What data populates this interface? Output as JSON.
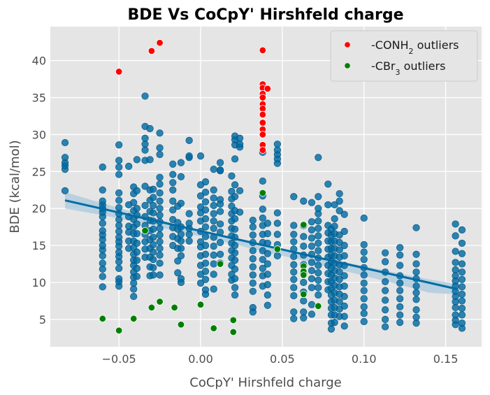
{
  "chart_data": {
    "type": "scatter",
    "title": "BDE Vs CoCpY' Hirshfeld charge",
    "xlabel": "CoCpY' Hirshfeld charge",
    "ylabel": "BDE (kcal/mol)",
    "xlim": [
      -0.092,
      0.172
    ],
    "ylim": [
      1.3,
      44.6
    ],
    "x_ticks": [
      -0.05,
      0.0,
      0.05,
      0.1,
      0.15
    ],
    "x_tick_labels": [
      "−0.05",
      "0.00",
      "0.05",
      "0.10",
      "0.15"
    ],
    "y_ticks": [
      5,
      10,
      15,
      20,
      25,
      30,
      35,
      40
    ],
    "y_tick_labels": [
      "5",
      "10",
      "15",
      "20",
      "25",
      "30",
      "35",
      "40"
    ],
    "grid": true,
    "legend_position": "top-right",
    "colors": {
      "main": "#006ba4",
      "conh2": "#ff0000",
      "cbr3": "#008000",
      "plot_bg": "#e5e5e5",
      "grid": "#ffffff",
      "fit_line": "#006ba4",
      "band": "#a8c8dc"
    },
    "regression": {
      "x": [
        -0.083,
        0.157
      ],
      "y": [
        21.1,
        9.1
      ]
    },
    "band": {
      "x": [
        -0.083,
        -0.06,
        -0.04,
        -0.02,
        0.0,
        0.02,
        0.04,
        0.06,
        0.08,
        0.1,
        0.12,
        0.14,
        0.157
      ],
      "upper": [
        22.2,
        20.7,
        19.4,
        18.2,
        17.1,
        16.1,
        15.1,
        14.1,
        13.1,
        12.2,
        11.3,
        10.4,
        9.8
      ],
      "lower": [
        20.0,
        19.1,
        18.2,
        17.2,
        16.2,
        15.2,
        14.1,
        13.1,
        12.0,
        10.9,
        9.8,
        8.6,
        8.4
      ]
    },
    "series": [
      {
        "name": "",
        "columns": [
          {
            "x": -0.083,
            "y": [
              22.4,
              25.3,
              25.8,
              26.2,
              26.9,
              28.9
            ]
          },
          {
            "x": -0.06,
            "y": [
              9.4,
              10.8,
              11.8,
              12.6,
              13.6,
              14.4,
              15.0,
              15.8,
              16.4,
              17.0,
              18.0,
              18.9,
              19.5,
              20.0,
              20.5,
              21.0,
              22.5,
              25.6
            ]
          },
          {
            "x": -0.05,
            "y": [
              9.5,
              10.1,
              10.5,
              11.9,
              12.8,
              13.5,
              14.1,
              14.9,
              15.5,
              16.1,
              16.9,
              17.7,
              18.5,
              19.3,
              20.1,
              21.1,
              22.1,
              24.6,
              25.6,
              26.5,
              28.6
            ]
          },
          {
            "x": -0.044,
            "y": [
              14.6,
              15.6,
              16.8,
              17.6,
              18.9,
              20.5,
              25.7
            ]
          },
          {
            "x": -0.041,
            "y": [
              8.1,
              9.1,
              9.9,
              10.7,
              11.4,
              12.3,
              13.0,
              13.8,
              14.7,
              15.6,
              16.6,
              17.5,
              18.5,
              19.7,
              20.8,
              22.0,
              22.9
            ]
          },
          {
            "x": -0.039,
            "y": [
              10.8,
              11.9,
              13.0,
              14.1,
              15.3,
              16.6,
              17.9,
              19.1,
              20.0,
              22.4,
              26.6
            ]
          },
          {
            "x": -0.034,
            "y": [
              13.4,
              14.5,
              15.5,
              16.5,
              17.7,
              18.9,
              20.4,
              23.0,
              26.5,
              27.9,
              28.7,
              29.5,
              31.1,
              35.2
            ]
          },
          {
            "x": -0.031,
            "y": [
              10.9,
              12.1,
              13.4,
              14.6,
              15.8,
              17.0,
              18.4,
              19.6,
              21.1,
              22.5,
              26.6,
              30.8
            ]
          },
          {
            "x": -0.029,
            "y": [
              11.0,
              12.0,
              13.1,
              14.1,
              15.1,
              16.1,
              17.2,
              18.3,
              19.4,
              20.4,
              21.5,
              22.6
            ]
          },
          {
            "x": -0.025,
            "y": [
              11.0,
              12.6,
              13.7,
              14.6,
              15.5,
              16.4,
              17.3,
              18.2,
              19.1,
              20.0,
              21.0,
              22.1,
              23.3,
              24.2,
              27.3,
              28.2,
              30.2
            ]
          },
          {
            "x": -0.017,
            "y": [
              15.0,
              16.2,
              17.4,
              18.5,
              19.8,
              21.0,
              22.5,
              23.5,
              24.6,
              26.0
            ]
          },
          {
            "x": -0.014,
            "y": [
              11.3,
              12.9,
              14.6,
              15.9,
              17.2,
              18.1,
              20.3
            ]
          },
          {
            "x": -0.012,
            "y": [
              10.0,
              10.5,
              13.6,
              14.6,
              15.6,
              16.5,
              17.5,
              20.7,
              24.3,
              26.2
            ]
          },
          {
            "x": -0.007,
            "y": [
              15.6,
              16.5,
              17.3,
              18.0,
              19.3,
              26.9,
              27.1,
              29.2
            ]
          },
          {
            "x": 0.0,
            "y": [
              9.9,
              11.1,
              12.3,
              13.6,
              14.8,
              15.5,
              16.9,
              18.3,
              19.4,
              20.2,
              21.7,
              23.2,
              27.1
            ]
          },
          {
            "x": 0.003,
            "y": [
              8.4,
              9.0,
              10.4,
              11.5,
              12.6,
              13.8,
              15.0,
              16.2,
              17.5,
              18.6,
              19.8,
              20.9,
              22.2,
              23.6
            ]
          },
          {
            "x": 0.008,
            "y": [
              9.1,
              11.1,
              12.5,
              13.7,
              14.9,
              16.1,
              17.3,
              18.3,
              19.3,
              20.4,
              21.4,
              22.5,
              25.3
            ]
          },
          {
            "x": 0.012,
            "y": [
              12.6,
              13.8,
              15.4,
              16.8,
              17.9,
              19.6,
              20.6,
              21.2,
              25.1,
              25.2,
              26.2
            ]
          },
          {
            "x": 0.019,
            "y": [
              10.3,
              11.1,
              12.3,
              13.3,
              14.3,
              15.3,
              16.3,
              17.3,
              18.3,
              19.3,
              20.3,
              21.3,
              22.3,
              24.4
            ]
          },
          {
            "x": 0.021,
            "y": [
              8.3,
              9.3,
              10.5,
              11.8,
              13.0,
              14.0,
              15.0,
              16.1,
              17.2,
              18.6,
              19.7,
              21.6,
              23.2,
              26.7,
              28.6,
              29.3,
              29.8
            ]
          },
          {
            "x": 0.024,
            "y": [
              19.5,
              22.4,
              28.3,
              28.7,
              29.5
            ]
          },
          {
            "x": 0.032,
            "y": [
              6.0,
              6.6,
              8.8,
              9.9,
              11.0,
              12.1,
              13.2,
              14.3,
              15.4,
              16.4,
              17.5,
              18.4
            ]
          },
          {
            "x": 0.038,
            "y": [
              9.5,
              10.9,
              11.9,
              13.1,
              14.3,
              15.4,
              16.5,
              17.7,
              18.7,
              19.9,
              21.7,
              22.1,
              23.7,
              27.6
            ]
          },
          {
            "x": 0.041,
            "y": [
              6.9,
              8.3,
              9.7,
              11.1,
              12.5,
              13.9,
              15.3,
              16.6,
              18.0
            ]
          },
          {
            "x": 0.047,
            "y": [
              13.6,
              15.1,
              16.5,
              18.0,
              19.4,
              26.1,
              26.7,
              27.3,
              27.9,
              28.7
            ]
          },
          {
            "x": 0.057,
            "y": [
              5.1,
              6.0,
              8.2,
              9.3,
              10.4,
              11.4,
              12.4,
              13.5,
              14.5,
              15.5,
              16.5,
              17.7,
              21.6
            ]
          },
          {
            "x": 0.063,
            "y": [
              5.2,
              6.0,
              7.5,
              8.7,
              10.0,
              11.2,
              12.4,
              13.7,
              14.9,
              16.2,
              17.7,
              21.0
            ]
          },
          {
            "x": 0.068,
            "y": [
              5.7,
              7.0,
              9.3,
              10.5,
              11.6,
              12.7,
              13.8,
              14.9,
              16.0,
              17.1,
              18.2,
              20.8
            ]
          },
          {
            "x": 0.072,
            "y": [
              8.3,
              9.3,
              10.3,
              11.3,
              12.3,
              13.3,
              14.3,
              15.3,
              16.3,
              17.3,
              18.3,
              19.3,
              20.0,
              21.6,
              26.9
            ]
          },
          {
            "x": 0.078,
            "y": [
              9.0,
              10.1,
              11.2,
              12.3,
              13.4,
              14.5,
              15.6,
              16.7,
              17.7,
              20.5,
              23.3
            ]
          },
          {
            "x": 0.08,
            "y": [
              3.7,
              4.5,
              5.6,
              6.5,
              7.4,
              8.3,
              9.2,
              10.1,
              11.0,
              11.9,
              12.8,
              13.7,
              14.6,
              15.5,
              16.4,
              17.2
            ]
          },
          {
            "x": 0.082,
            "y": [
              4.6,
              5.6,
              6.6,
              7.6,
              8.6,
              9.6,
              10.6,
              11.6,
              12.6,
              13.6,
              14.6,
              15.6,
              16.6,
              17.6,
              18.6,
              20.5
            ]
          },
          {
            "x": 0.085,
            "y": [
              5.4,
              6.4,
              7.4,
              8.4,
              9.4,
              10.4,
              11.4,
              12.4,
              13.4,
              14.4,
              15.4,
              16.4,
              19.7,
              21.0,
              22.0
            ]
          },
          {
            "x": 0.088,
            "y": [
              4.1,
              5.4,
              6.8,
              8.1,
              9.5,
              10.9,
              12.3,
              13.6,
              15.0,
              16.9,
              19.2
            ]
          },
          {
            "x": 0.1,
            "y": [
              4.7,
              5.8,
              6.7,
              7.8,
              8.9,
              9.9,
              11.0,
              12.0,
              13.1,
              14.1,
              15.1,
              18.7
            ]
          },
          {
            "x": 0.113,
            "y": [
              4.0,
              5.0,
              6.3,
              7.6,
              8.9,
              10.1,
              11.4,
              12.8,
              14.0
            ]
          },
          {
            "x": 0.122,
            "y": [
              4.6,
              5.6,
              6.7,
              7.8,
              8.9,
              9.9,
              10.9,
              12.3,
              13.7,
              14.7
            ]
          },
          {
            "x": 0.132,
            "y": [
              4.5,
              5.3,
              6.3,
              7.7,
              8.6,
              9.5,
              10.5,
              11.4,
              12.5,
              13.8,
              17.4
            ]
          },
          {
            "x": 0.156,
            "y": [
              4.3,
              4.9,
              5.6,
              6.6,
              7.4,
              8.1,
              8.8,
              9.5,
              10.2,
              10.9,
              11.7,
              12.7,
              14.2,
              16.3,
              17.9
            ]
          },
          {
            "x": 0.16,
            "y": [
              3.8,
              4.5,
              5.6,
              6.5,
              7.5,
              8.4,
              9.4,
              10.4,
              11.4,
              12.5,
              13.9,
              15.3,
              17.1
            ]
          }
        ]
      },
      {
        "name": "-CONH2 outliers",
        "points": [
          [
            -0.05,
            38.5
          ],
          [
            -0.03,
            41.3
          ],
          [
            -0.025,
            42.4
          ],
          [
            0.038,
            41.4
          ],
          [
            0.038,
            36.8
          ],
          [
            0.038,
            36.3
          ],
          [
            0.038,
            35.5
          ],
          [
            0.038,
            35.0
          ],
          [
            0.038,
            34.1
          ],
          [
            0.038,
            33.5
          ],
          [
            0.038,
            32.7
          ],
          [
            0.038,
            31.6
          ],
          [
            0.038,
            30.7
          ],
          [
            0.038,
            30.0
          ],
          [
            0.038,
            28.6
          ],
          [
            0.038,
            27.9
          ],
          [
            0.041,
            36.2
          ]
        ]
      },
      {
        "name": "-CBr3 outliers",
        "points": [
          [
            -0.06,
            5.1
          ],
          [
            -0.05,
            3.5
          ],
          [
            -0.041,
            5.1
          ],
          [
            -0.034,
            17.0
          ],
          [
            -0.03,
            6.6
          ],
          [
            -0.025,
            7.4
          ],
          [
            -0.016,
            6.6
          ],
          [
            -0.012,
            4.3
          ],
          [
            0.0,
            7.0
          ],
          [
            0.008,
            3.8
          ],
          [
            0.012,
            12.5
          ],
          [
            0.02,
            4.9
          ],
          [
            0.02,
            3.3
          ],
          [
            0.038,
            22.1
          ],
          [
            0.047,
            14.5
          ],
          [
            0.063,
            17.8
          ],
          [
            0.063,
            12.2
          ],
          [
            0.063,
            11.5
          ],
          [
            0.063,
            11.0
          ],
          [
            0.063,
            8.4
          ],
          [
            0.072,
            6.8
          ]
        ]
      }
    ],
    "legend": [
      {
        "color": "#ff0000",
        "prefix": "-CONH",
        "sub": "2",
        "suffix": " outliers"
      },
      {
        "color": "#008000",
        "prefix": "-CBr",
        "sub": "3",
        "suffix": " outliers"
      }
    ]
  }
}
